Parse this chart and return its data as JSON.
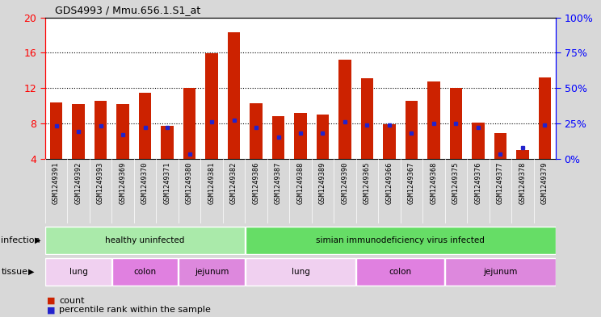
{
  "title": "GDS4993 / Mmu.656.1.S1_at",
  "samples": [
    "GSM1249391",
    "GSM1249392",
    "GSM1249393",
    "GSM1249369",
    "GSM1249370",
    "GSM1249371",
    "GSM1249380",
    "GSM1249381",
    "GSM1249382",
    "GSM1249386",
    "GSM1249387",
    "GSM1249388",
    "GSM1249389",
    "GSM1249390",
    "GSM1249365",
    "GSM1249366",
    "GSM1249367",
    "GSM1249368",
    "GSM1249375",
    "GSM1249376",
    "GSM1249377",
    "GSM1249378",
    "GSM1249379"
  ],
  "counts": [
    10.4,
    10.2,
    10.5,
    10.2,
    11.5,
    7.7,
    12.0,
    15.9,
    18.3,
    10.3,
    8.8,
    9.2,
    9.0,
    15.2,
    13.1,
    7.9,
    10.5,
    12.7,
    12.0,
    8.1,
    6.9,
    5.0,
    13.2
  ],
  "percentile_ranks_pct": [
    23,
    19,
    23,
    17,
    22,
    22,
    3,
    26,
    27,
    22,
    15,
    18,
    18,
    26,
    24,
    24,
    18,
    25,
    25,
    22,
    3,
    8,
    24
  ],
  "bar_color": "#cc2200",
  "dot_color": "#2222cc",
  "ylim_left": [
    4,
    20
  ],
  "ylim_right": [
    0,
    100
  ],
  "yticks_left": [
    4,
    8,
    12,
    16,
    20
  ],
  "ytick_labels_left": [
    "4",
    "8",
    "12",
    "16",
    "20"
  ],
  "ytick_labels_right": [
    "0%",
    "25%",
    "50%",
    "75%",
    "100%"
  ],
  "yticks_right": [
    0,
    25,
    50,
    75,
    100
  ],
  "infection_groups": [
    {
      "label": "healthy uninfected",
      "start": 0,
      "end": 9,
      "color": "#aaeaaa"
    },
    {
      "label": "simian immunodeficiency virus infected",
      "start": 9,
      "end": 23,
      "color": "#66dd66"
    }
  ],
  "tissue_groups": [
    {
      "label": "lung",
      "start": 0,
      "end": 3,
      "color": "#f0d0f0"
    },
    {
      "label": "colon",
      "start": 3,
      "end": 6,
      "color": "#e080e0"
    },
    {
      "label": "jejunum",
      "start": 6,
      "end": 9,
      "color": "#dd88dd"
    },
    {
      "label": "lung",
      "start": 9,
      "end": 14,
      "color": "#f0d0f0"
    },
    {
      "label": "colon",
      "start": 14,
      "end": 18,
      "color": "#e080e0"
    },
    {
      "label": "jejunum",
      "start": 18,
      "end": 23,
      "color": "#dd88dd"
    }
  ],
  "infection_label": "infection",
  "tissue_label": "tissue",
  "legend_count_label": "count",
  "legend_percentile_label": "percentile rank within the sample",
  "bar_width": 0.55,
  "bg_color": "#d8d8d8",
  "plot_bg": "#ffffff",
  "tick_bg": "#d0d0d0"
}
